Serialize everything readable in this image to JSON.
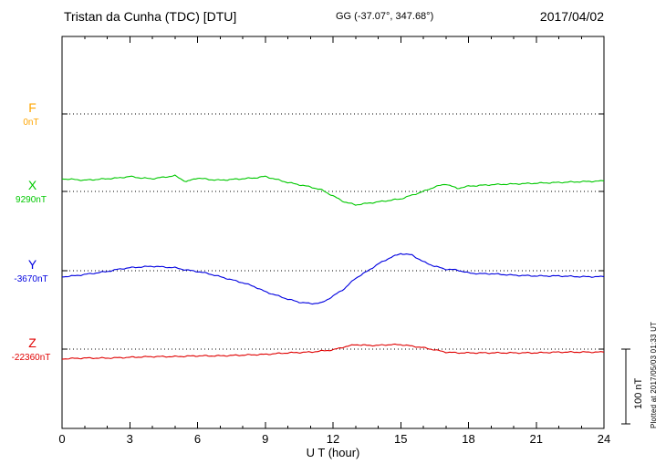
{
  "header": {
    "station": "Tristan da Cunha (TDC)  [DTU]",
    "coords": "GG (-37.07°, 347.68°)",
    "date": "2017/04/02"
  },
  "side_note": "Plotted at 2017/05/03 01:33 UT",
  "scale_bar": {
    "label": "100 nT",
    "nT": 100
  },
  "chart_data": {
    "type": "line",
    "title": "Magnetogram Tristan da Cunha (TDC) [DTU] 2017/04/02",
    "xlabel": "U T (hour)",
    "xlim": [
      0,
      24
    ],
    "x_ticks": [
      0,
      3,
      6,
      9,
      12,
      15,
      18,
      21,
      24
    ],
    "grid": "dotted horizontal baselines per component",
    "legend_position": "left margin, colored component labels",
    "scale": "100 nT reference bar at right",
    "components": [
      {
        "id": "F",
        "label": "F",
        "baseline_label": "0nT",
        "baseline_value": 0,
        "color": "#FFA500",
        "points_offset_nT": []
      },
      {
        "id": "X",
        "label": "X",
        "baseline_label": "9290nT",
        "baseline_value": 9290,
        "color": "#00C800",
        "points_offset_nT": [
          [
            0,
            17
          ],
          [
            0.5,
            16
          ],
          [
            1,
            15
          ],
          [
            1.5,
            16
          ],
          [
            2,
            17
          ],
          [
            2.5,
            18
          ],
          [
            3,
            20
          ],
          [
            3.5,
            18
          ],
          [
            4,
            17
          ],
          [
            4.5,
            19
          ],
          [
            5,
            21
          ],
          [
            5.5,
            13
          ],
          [
            6,
            18
          ],
          [
            6.5,
            16
          ],
          [
            7,
            15
          ],
          [
            7.5,
            16
          ],
          [
            8,
            17
          ],
          [
            8.5,
            18
          ],
          [
            9,
            20
          ],
          [
            9.5,
            16
          ],
          [
            10,
            12
          ],
          [
            10.5,
            9
          ],
          [
            11,
            6
          ],
          [
            11.5,
            2
          ],
          [
            12,
            -6
          ],
          [
            12.5,
            -14
          ],
          [
            13,
            -18
          ],
          [
            13.5,
            -16
          ],
          [
            14,
            -14
          ],
          [
            14.5,
            -12
          ],
          [
            15,
            -10
          ],
          [
            15.5,
            -5
          ],
          [
            16,
            0
          ],
          [
            16.5,
            6
          ],
          [
            17,
            10
          ],
          [
            17.5,
            4
          ],
          [
            18,
            7
          ],
          [
            19,
            9
          ],
          [
            20,
            10
          ],
          [
            21,
            11
          ],
          [
            22,
            12
          ],
          [
            23,
            13
          ],
          [
            24,
            14
          ]
        ]
      },
      {
        "id": "Y",
        "label": "Y",
        "baseline_label": "-3670nT",
        "baseline_value": -3670,
        "color": "#0000E0",
        "points_offset_nT": [
          [
            0,
            -8
          ],
          [
            0.5,
            -7
          ],
          [
            1,
            -5
          ],
          [
            1.5,
            -3
          ],
          [
            2,
            -1
          ],
          [
            2.5,
            2
          ],
          [
            3,
            4
          ],
          [
            3.5,
            5
          ],
          [
            4,
            6
          ],
          [
            4.5,
            5
          ],
          [
            5,
            4
          ],
          [
            5.5,
            1
          ],
          [
            6,
            -1
          ],
          [
            6.5,
            -4
          ],
          [
            7,
            -8
          ],
          [
            7.5,
            -12
          ],
          [
            8,
            -16
          ],
          [
            8.5,
            -21
          ],
          [
            9,
            -28
          ],
          [
            9.5,
            -33
          ],
          [
            10,
            -38
          ],
          [
            10.5,
            -42
          ],
          [
            11,
            -44
          ],
          [
            11.5,
            -43
          ],
          [
            12,
            -34
          ],
          [
            12.5,
            -24
          ],
          [
            13,
            -10
          ],
          [
            13.5,
            -1
          ],
          [
            14,
            9
          ],
          [
            14.5,
            17
          ],
          [
            15,
            23
          ],
          [
            15.5,
            21
          ],
          [
            16,
            12
          ],
          [
            16.5,
            6
          ],
          [
            17,
            2
          ],
          [
            17.5,
            1
          ],
          [
            18,
            -3
          ],
          [
            18.5,
            -4
          ],
          [
            19,
            -4
          ],
          [
            20,
            -6
          ],
          [
            21,
            -7
          ],
          [
            22,
            -7
          ],
          [
            23,
            -8
          ],
          [
            24,
            -8
          ]
        ]
      },
      {
        "id": "Z",
        "label": "Z",
        "baseline_label": "-22360nT",
        "baseline_value": -22360,
        "color": "#E00000",
        "points_offset_nT": [
          [
            0,
            -13
          ],
          [
            1,
            -12
          ],
          [
            2,
            -12
          ],
          [
            3,
            -11
          ],
          [
            4,
            -10
          ],
          [
            5,
            -10
          ],
          [
            6,
            -9
          ],
          [
            7,
            -9
          ],
          [
            8,
            -8
          ],
          [
            9,
            -7
          ],
          [
            10,
            -5
          ],
          [
            11,
            -4
          ],
          [
            12,
            -1
          ],
          [
            12.5,
            3
          ],
          [
            13,
            6
          ],
          [
            13.5,
            5
          ],
          [
            14,
            5
          ],
          [
            14.5,
            6
          ],
          [
            15,
            6
          ],
          [
            15.5,
            4
          ],
          [
            16,
            2
          ],
          [
            16.5,
            -1
          ],
          [
            17,
            -4
          ],
          [
            17.5,
            -5
          ],
          [
            18,
            -5
          ],
          [
            19,
            -5
          ],
          [
            20,
            -5
          ],
          [
            21,
            -5
          ],
          [
            22,
            -4
          ],
          [
            23,
            -4
          ],
          [
            24,
            -4
          ]
        ]
      }
    ]
  }
}
